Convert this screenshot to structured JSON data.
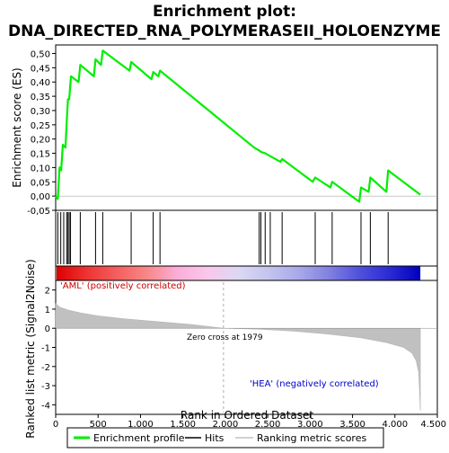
{
  "chart_data": {
    "type": "line",
    "title_line1": "Enrichment plot:",
    "title_line2": "DNA_DIRECTED_RNA_POLYMERASEII_HOLOENZYME",
    "es_panel": {
      "ylabel": "Enrichment score (ES)",
      "ylim": [
        -0.05,
        0.53
      ],
      "yticks": [
        "0,50",
        "0,45",
        "0,40",
        "0,35",
        "0,30",
        "0,25",
        "0,20",
        "0,15",
        "0,10",
        "0,05",
        "0,00",
        "-0,05"
      ],
      "ytick_values": [
        0.5,
        0.45,
        0.4,
        0.35,
        0.3,
        0.25,
        0.2,
        0.15,
        0.1,
        0.05,
        0.0,
        -0.05
      ],
      "line_color": "#00ee00",
      "points": [
        [
          0,
          0.0
        ],
        [
          25,
          -0.01
        ],
        [
          45,
          0.1
        ],
        [
          65,
          0.09
        ],
        [
          85,
          0.18
        ],
        [
          115,
          0.17
        ],
        [
          130,
          0.26
        ],
        [
          145,
          0.34
        ],
        [
          160,
          0.34
        ],
        [
          180,
          0.42
        ],
        [
          270,
          0.4
        ],
        [
          290,
          0.46
        ],
        [
          450,
          0.42
        ],
        [
          470,
          0.48
        ],
        [
          535,
          0.46
        ],
        [
          555,
          0.51
        ],
        [
          870,
          0.44
        ],
        [
          890,
          0.47
        ],
        [
          1130,
          0.41
        ],
        [
          1150,
          0.435
        ],
        [
          1210,
          0.42
        ],
        [
          1230,
          0.44
        ],
        [
          2340,
          0.17
        ],
        [
          2400,
          0.16
        ],
        [
          2420,
          0.155
        ],
        [
          2470,
          0.15
        ],
        [
          2530,
          0.14
        ],
        [
          2650,
          0.12
        ],
        [
          2670,
          0.13
        ],
        [
          3030,
          0.05
        ],
        [
          3060,
          0.065
        ],
        [
          3240,
          0.03
        ],
        [
          3260,
          0.05
        ],
        [
          3580,
          -0.02
        ],
        [
          3600,
          0.03
        ],
        [
          3690,
          0.015
        ],
        [
          3710,
          0.065
        ],
        [
          3900,
          0.015
        ],
        [
          3920,
          0.09
        ],
        [
          4300,
          0.005
        ]
      ]
    },
    "hits": [
      25,
      60,
      95,
      130,
      145,
      160,
      175,
      290,
      470,
      555,
      890,
      1150,
      1230,
      2400,
      2420,
      2470,
      2530,
      2670,
      3060,
      3260,
      3600,
      3710,
      3920
    ],
    "rank_panel": {
      "ylabel": "Ranked list metric (Signal2Noise)",
      "ylim": [
        -4.5,
        2.5
      ],
      "yticks": [
        "2",
        "1",
        "0",
        "-1",
        "-2",
        "-3",
        "-4"
      ],
      "ytick_values": [
        2,
        1,
        0,
        -1,
        -2,
        -3,
        -4
      ],
      "fill_color": "#c0c0c0",
      "profile": [
        [
          0,
          1.3
        ],
        [
          50,
          1.1
        ],
        [
          150,
          0.95
        ],
        [
          300,
          0.8
        ],
        [
          500,
          0.65
        ],
        [
          800,
          0.5
        ],
        [
          1200,
          0.35
        ],
        [
          1600,
          0.2
        ],
        [
          1979,
          0.0
        ],
        [
          2400,
          -0.05
        ],
        [
          2800,
          -0.15
        ],
        [
          3200,
          -0.3
        ],
        [
          3600,
          -0.5
        ],
        [
          3900,
          -0.75
        ],
        [
          4100,
          -1.0
        ],
        [
          4200,
          -1.3
        ],
        [
          4250,
          -1.7
        ],
        [
          4280,
          -2.3
        ],
        [
          4300,
          -4.3
        ]
      ],
      "label_pos": "'AML' (positively correlated)",
      "label_neg": "'HEA' (negatively correlated)",
      "zero_cross_label": "Zero cross at 1979",
      "zero_cross": 1979
    },
    "xlabel": "Rank in Ordered Dataset",
    "xlim": [
      0,
      4500
    ],
    "xticks": [
      "0",
      "500",
      "1.000",
      "1.500",
      "2.000",
      "2.500",
      "3.000",
      "3.500",
      "4.000",
      "4.500"
    ],
    "xtick_values": [
      0,
      500,
      1000,
      1500,
      2000,
      2500,
      3000,
      3500,
      4000,
      4500
    ],
    "n_genes": 4300,
    "legend": {
      "items": [
        "Enrichment profile",
        "Hits",
        "Ranking metric scores"
      ],
      "colors": [
        "#00ee00",
        "#000000",
        "#c0c0c0"
      ]
    },
    "colors": {
      "pos_label": "#cc0000",
      "neg_label": "#0000cc",
      "bar_stops": [
        "#dd0000",
        "#ee3333",
        "#f55f5f",
        "#f88888",
        "#fbaeda",
        "#f8c8ea",
        "#dcd8f4",
        "#c4c4ee",
        "#a8a8ea",
        "#8080e0",
        "#5050dc",
        "#2a2ad4",
        "#0000bb"
      ]
    }
  }
}
